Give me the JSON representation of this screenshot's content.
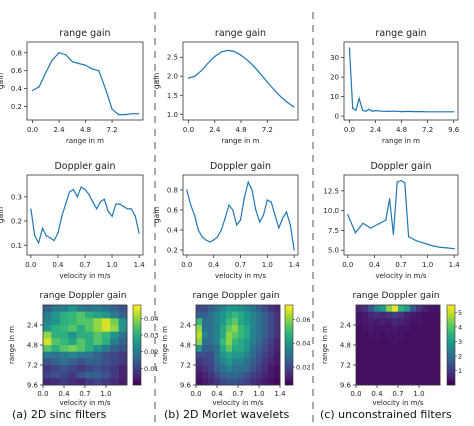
{
  "captions": [
    "(a) 2D sinc filters",
    "(b) 2D Morlet wavelets",
    "(c) unconstrained filters"
  ],
  "colors": {
    "line": "#1f77b4",
    "divider": "#555555",
    "colormap": "viridis"
  },
  "chart_data": [
    {
      "id": "a-range",
      "type": "line",
      "title": "range gain",
      "xlabel": "range in m",
      "ylabel": "gain",
      "xlim": [
        -0.5,
        10.0
      ],
      "ylim": [
        0.05,
        0.92
      ],
      "xticks": [
        0.0,
        2.4,
        4.8,
        7.2
      ],
      "xtick_labels": [
        "0.0",
        "2.4",
        "4.8",
        "7.2"
      ],
      "yticks": [
        0.2,
        0.4,
        0.6,
        0.8
      ],
      "ytick_labels": [
        "0.2",
        "0.4",
        "0.6",
        "0.8"
      ],
      "x": [
        0.0,
        0.6,
        1.2,
        1.8,
        2.4,
        3.0,
        3.6,
        4.2,
        4.8,
        5.4,
        6.0,
        6.6,
        7.2,
        7.8,
        8.4,
        9.0,
        9.6
      ],
      "values": [
        0.38,
        0.42,
        0.58,
        0.72,
        0.8,
        0.78,
        0.7,
        0.68,
        0.66,
        0.62,
        0.6,
        0.4,
        0.17,
        0.11,
        0.11,
        0.12,
        0.12
      ]
    },
    {
      "id": "b-range",
      "type": "line",
      "title": "range gain",
      "xlabel": "range in m",
      "ylabel": "gain",
      "xlim": [
        -0.5,
        10.0
      ],
      "ylim": [
        0.85,
        2.9
      ],
      "xticks": [
        0.0,
        2.4,
        4.8,
        7.2
      ],
      "xtick_labels": [
        "0.0",
        "2.4",
        "4.8",
        "7.2"
      ],
      "yticks": [
        1.0,
        1.5,
        2.0,
        2.5
      ],
      "ytick_labels": [
        "1.0",
        "1.5",
        "2.0",
        "2.5"
      ],
      "x": [
        0.0,
        0.6,
        1.2,
        1.8,
        2.4,
        3.0,
        3.6,
        4.2,
        4.8,
        5.4,
        6.0,
        6.6,
        7.2,
        7.8,
        8.4,
        9.0,
        9.6
      ],
      "values": [
        1.95,
        2.0,
        2.15,
        2.35,
        2.52,
        2.64,
        2.68,
        2.65,
        2.55,
        2.42,
        2.25,
        2.05,
        1.85,
        1.65,
        1.47,
        1.32,
        1.2
      ]
    },
    {
      "id": "c-range",
      "type": "line",
      "title": "range gain",
      "xlabel": "range in m",
      "ylabel": "",
      "xlim": [
        -0.5,
        10.0
      ],
      "ylim": [
        -2,
        38
      ],
      "xticks": [
        0.0,
        2.4,
        4.8,
        7.2,
        9.6
      ],
      "xtick_labels": [
        "0.0",
        "2.4",
        "4.8",
        "7.2",
        "9.6"
      ],
      "yticks": [
        0,
        10,
        20,
        30
      ],
      "ytick_labels": [
        "0",
        "10",
        "20",
        "30"
      ],
      "x": [
        0.0,
        0.3,
        0.6,
        0.9,
        1.2,
        1.5,
        1.8,
        2.1,
        2.4,
        3.0,
        3.6,
        4.2,
        4.8,
        5.4,
        6.0,
        6.6,
        7.2,
        7.8,
        8.4,
        9.0,
        9.6
      ],
      "values": [
        35,
        4,
        3,
        9,
        3,
        2.5,
        3.5,
        2.5,
        2.8,
        2.5,
        2.4,
        2.5,
        2.3,
        2.4,
        2.3,
        2.3,
        2.2,
        2.2,
        2.2,
        2.2,
        2.2
      ]
    },
    {
      "id": "a-doppler",
      "type": "line",
      "title": "Doppler gain",
      "xlabel": "velocity in m/s",
      "ylabel": "gain",
      "xlim": [
        -0.05,
        1.45
      ],
      "ylim": [
        0.06,
        0.39
      ],
      "xticks": [
        0.0,
        0.35,
        0.7,
        1.05,
        1.4
      ],
      "xtick_labels": [
        "0.0",
        "0.4",
        "0.7",
        "1.0",
        "1.4"
      ],
      "yticks": [
        0.1,
        0.2,
        0.3
      ],
      "ytick_labels": [
        "0.1",
        "0.2",
        "0.3"
      ],
      "x": [
        0.0,
        0.05,
        0.1,
        0.15,
        0.2,
        0.25,
        0.3,
        0.35,
        0.4,
        0.45,
        0.5,
        0.55,
        0.6,
        0.65,
        0.7,
        0.75,
        0.8,
        0.85,
        0.9,
        0.95,
        1.0,
        1.05,
        1.1,
        1.15,
        1.2,
        1.25,
        1.3,
        1.35,
        1.4
      ],
      "values": [
        0.25,
        0.14,
        0.11,
        0.17,
        0.14,
        0.13,
        0.12,
        0.15,
        0.22,
        0.27,
        0.32,
        0.33,
        0.3,
        0.34,
        0.33,
        0.31,
        0.28,
        0.25,
        0.28,
        0.29,
        0.24,
        0.22,
        0.27,
        0.27,
        0.26,
        0.25,
        0.25,
        0.22,
        0.15
      ]
    },
    {
      "id": "b-doppler",
      "type": "line",
      "title": "Doppler gain",
      "xlabel": "velocity in m/s",
      "ylabel": "gain",
      "xlim": [
        -0.05,
        1.45
      ],
      "ylim": [
        0.15,
        0.95
      ],
      "xticks": [
        0.0,
        0.35,
        0.7,
        1.05,
        1.4
      ],
      "xtick_labels": [
        "0.0",
        "0.4",
        "0.7",
        "1.0",
        "1.4"
      ],
      "yticks": [
        0.2,
        0.4,
        0.6,
        0.8
      ],
      "ytick_labels": [
        "0.2",
        "0.4",
        "0.6",
        "0.8"
      ],
      "x": [
        0.0,
        0.05,
        0.1,
        0.15,
        0.2,
        0.25,
        0.3,
        0.35,
        0.4,
        0.45,
        0.5,
        0.55,
        0.6,
        0.65,
        0.7,
        0.75,
        0.8,
        0.85,
        0.9,
        0.95,
        1.0,
        1.05,
        1.1,
        1.15,
        1.2,
        1.25,
        1.3,
        1.35,
        1.4
      ],
      "values": [
        0.8,
        0.65,
        0.55,
        0.4,
        0.33,
        0.3,
        0.28,
        0.3,
        0.33,
        0.4,
        0.52,
        0.65,
        0.6,
        0.45,
        0.5,
        0.72,
        0.88,
        0.8,
        0.6,
        0.48,
        0.55,
        0.7,
        0.68,
        0.55,
        0.42,
        0.52,
        0.58,
        0.45,
        0.2
      ]
    },
    {
      "id": "c-doppler",
      "type": "line",
      "title": "Doppler gain",
      "xlabel": "velocity in m/s",
      "ylabel": "",
      "xlim": [
        -0.05,
        1.45
      ],
      "ylim": [
        4.4,
        14.5
      ],
      "xticks": [
        0.0,
        0.35,
        0.7,
        1.05,
        1.4
      ],
      "xtick_labels": [
        "0.0",
        "0.4",
        "0.7",
        "1.0",
        "1.4"
      ],
      "yticks": [
        5.0,
        7.5,
        10.0,
        12.5
      ],
      "ytick_labels": [
        "5.0",
        "7.5",
        "10.0",
        "12.5"
      ],
      "x": [
        0.0,
        0.1,
        0.2,
        0.3,
        0.4,
        0.5,
        0.55,
        0.6,
        0.65,
        0.7,
        0.75,
        0.8,
        0.9,
        1.0,
        1.1,
        1.2,
        1.3,
        1.4
      ],
      "values": [
        9.5,
        7.2,
        8.4,
        7.8,
        8.3,
        8.8,
        11.5,
        7.0,
        13.6,
        13.8,
        13.5,
        6.7,
        6.2,
        5.9,
        5.6,
        5.4,
        5.3,
        5.2
      ]
    },
    {
      "id": "a-heatmap",
      "type": "heatmap",
      "title": "range Doppler gain",
      "xlabel": "velocity in m/s",
      "ylabel": "range in m",
      "extent": [
        0.0,
        1.4,
        0.0,
        9.6
      ],
      "xticks": [
        0.0,
        0.35,
        0.7,
        1.05
      ],
      "xtick_labels": [
        "0.0",
        "0.4",
        "0.7",
        "1.0"
      ],
      "yticks": [
        2.4,
        4.8,
        7.2,
        9.6
      ],
      "ytick_labels": [
        "2.4",
        "4.8",
        "7.2",
        "9.6"
      ],
      "colorbar": {
        "min": 0.0,
        "max": 0.048,
        "ticks": [
          0.01,
          0.02,
          0.03,
          0.04
        ],
        "tick_labels": [
          "0.01",
          "0.02",
          "0.03",
          "0.04"
        ]
      },
      "rows": 12,
      "cols": 10,
      "values": [
        [
          0.015,
          0.02,
          0.02,
          0.025,
          0.02,
          0.018,
          0.02,
          0.018,
          0.015,
          0.012
        ],
        [
          0.02,
          0.025,
          0.03,
          0.032,
          0.035,
          0.03,
          0.028,
          0.025,
          0.02,
          0.015
        ],
        [
          0.022,
          0.025,
          0.03,
          0.032,
          0.035,
          0.035,
          0.04,
          0.045,
          0.038,
          0.025
        ],
        [
          0.025,
          0.03,
          0.032,
          0.035,
          0.03,
          0.035,
          0.04,
          0.045,
          0.04,
          0.025
        ],
        [
          0.04,
          0.03,
          0.03,
          0.025,
          0.03,
          0.03,
          0.035,
          0.032,
          0.025,
          0.018
        ],
        [
          0.045,
          0.035,
          0.032,
          0.028,
          0.035,
          0.03,
          0.035,
          0.03,
          0.02,
          0.015
        ],
        [
          0.035,
          0.03,
          0.035,
          0.038,
          0.035,
          0.03,
          0.025,
          0.02,
          0.015,
          0.012
        ],
        [
          0.02,
          0.018,
          0.02,
          0.022,
          0.02,
          0.018,
          0.015,
          0.012,
          0.01,
          0.008
        ],
        [
          0.012,
          0.015,
          0.018,
          0.015,
          0.012,
          0.015,
          0.015,
          0.012,
          0.01,
          0.008
        ],
        [
          0.008,
          0.01,
          0.012,
          0.01,
          0.008,
          0.01,
          0.012,
          0.01,
          0.008,
          0.005
        ],
        [
          0.01,
          0.012,
          0.01,
          0.008,
          0.012,
          0.015,
          0.015,
          0.012,
          0.008,
          0.005
        ],
        [
          0.005,
          0.006,
          0.008,
          0.006,
          0.005,
          0.008,
          0.01,
          0.008,
          0.006,
          0.004
        ]
      ]
    },
    {
      "id": "b-heatmap",
      "type": "heatmap",
      "title": "range Doppler gain",
      "xlabel": "velocity in m/s",
      "ylabel": "range in m",
      "extent": [
        0.0,
        1.4,
        0.0,
        9.6
      ],
      "xticks": [
        0.0,
        0.35,
        0.7,
        1.05,
        1.4
      ],
      "xtick_labels": [
        "0.0",
        "0.4",
        "0.7",
        "1.0",
        "1.4"
      ],
      "yticks": [
        2.4,
        4.8,
        7.2,
        9.6
      ],
      "ytick_labels": [
        "2.4",
        "4.8",
        "7.2",
        "9.6"
      ],
      "colorbar": {
        "min": 0.005,
        "max": 0.072,
        "ticks": [
          0.02,
          0.04,
          0.06
        ],
        "tick_labels": [
          "0.02",
          "0.04",
          "0.06"
        ]
      },
      "rows": 12,
      "cols": 14,
      "values": [
        [
          0.02,
          0.02,
          0.025,
          0.03,
          0.035,
          0.04,
          0.04,
          0.038,
          0.035,
          0.03,
          0.025,
          0.02,
          0.015,
          0.012
        ],
        [
          0.025,
          0.025,
          0.03,
          0.035,
          0.04,
          0.045,
          0.05,
          0.045,
          0.04,
          0.035,
          0.03,
          0.025,
          0.02,
          0.015
        ],
        [
          0.05,
          0.03,
          0.03,
          0.035,
          0.04,
          0.05,
          0.055,
          0.045,
          0.04,
          0.035,
          0.03,
          0.025,
          0.02,
          0.015
        ],
        [
          0.06,
          0.03,
          0.03,
          0.035,
          0.045,
          0.055,
          0.06,
          0.05,
          0.045,
          0.035,
          0.03,
          0.025,
          0.02,
          0.015
        ],
        [
          0.065,
          0.035,
          0.03,
          0.035,
          0.045,
          0.06,
          0.055,
          0.05,
          0.045,
          0.035,
          0.03,
          0.025,
          0.02,
          0.015
        ],
        [
          0.06,
          0.03,
          0.03,
          0.035,
          0.05,
          0.06,
          0.05,
          0.045,
          0.04,
          0.035,
          0.028,
          0.022,
          0.018,
          0.012
        ],
        [
          0.04,
          0.025,
          0.025,
          0.03,
          0.045,
          0.055,
          0.045,
          0.045,
          0.04,
          0.03,
          0.025,
          0.02,
          0.015,
          0.012
        ],
        [
          0.02,
          0.02,
          0.02,
          0.03,
          0.04,
          0.045,
          0.04,
          0.04,
          0.035,
          0.028,
          0.022,
          0.018,
          0.014,
          0.01
        ],
        [
          0.015,
          0.018,
          0.02,
          0.028,
          0.035,
          0.04,
          0.035,
          0.035,
          0.03,
          0.025,
          0.02,
          0.015,
          0.012,
          0.01
        ],
        [
          0.012,
          0.015,
          0.018,
          0.025,
          0.03,
          0.035,
          0.03,
          0.03,
          0.028,
          0.022,
          0.018,
          0.014,
          0.01,
          0.008
        ],
        [
          0.01,
          0.012,
          0.015,
          0.02,
          0.025,
          0.028,
          0.028,
          0.025,
          0.022,
          0.018,
          0.015,
          0.012,
          0.01,
          0.008
        ],
        [
          0.008,
          0.01,
          0.012,
          0.015,
          0.02,
          0.022,
          0.022,
          0.02,
          0.018,
          0.015,
          0.012,
          0.01,
          0.008,
          0.006
        ]
      ]
    },
    {
      "id": "c-heatmap",
      "type": "heatmap",
      "title": "range Doppler gain",
      "xlabel": "velocity in m/s",
      "ylabel": "range in m",
      "extent": [
        0.0,
        1.4,
        0.0,
        9.6
      ],
      "xticks": [
        0.0,
        0.35,
        0.7,
        1.05
      ],
      "xtick_labels": [
        "0.0",
        "0.4",
        "0.7",
        "1.0"
      ],
      "yticks": [
        2.4,
        4.8,
        7.2,
        9.6
      ],
      "ytick_labels": [
        "2.4",
        "4.8",
        "7.2",
        "9.6"
      ],
      "colorbar": {
        "min": 0.0,
        "max": 5.5,
        "ticks": [
          1,
          2,
          3,
          4,
          5
        ],
        "tick_labels": [
          "1",
          "2",
          "3",
          "4",
          "5"
        ]
      },
      "rows": 12,
      "cols": 14,
      "values": [
        [
          0.6,
          0.8,
          1.5,
          2.5,
          3.0,
          4.5,
          5.3,
          3.5,
          3.0,
          1.5,
          0.8,
          0.5,
          0.3,
          0.3
        ],
        [
          0.3,
          0.4,
          0.6,
          0.8,
          0.6,
          0.8,
          1.0,
          0.8,
          0.5,
          0.4,
          0.3,
          0.2,
          0.2,
          0.2
        ],
        [
          0.3,
          0.4,
          0.5,
          0.4,
          0.5,
          0.4,
          0.6,
          0.5,
          0.4,
          0.3,
          0.3,
          0.2,
          0.2,
          0.2
        ],
        [
          0.2,
          0.3,
          0.4,
          0.3,
          0.3,
          0.3,
          0.4,
          0.3,
          0.3,
          0.2,
          0.2,
          0.2,
          0.2,
          0.2
        ],
        [
          0.2,
          0.2,
          0.3,
          0.3,
          0.2,
          0.3,
          0.3,
          0.3,
          0.2,
          0.2,
          0.2,
          0.2,
          0.2,
          0.2
        ],
        [
          0.2,
          0.2,
          0.2,
          0.2,
          0.2,
          0.2,
          0.3,
          0.2,
          0.2,
          0.2,
          0.2,
          0.2,
          0.2,
          0.2
        ],
        [
          0.2,
          0.2,
          0.2,
          0.2,
          0.2,
          0.2,
          0.2,
          0.2,
          0.2,
          0.2,
          0.2,
          0.2,
          0.2,
          0.2
        ],
        [
          0.2,
          0.2,
          0.2,
          0.2,
          0.2,
          0.2,
          0.2,
          0.2,
          0.2,
          0.2,
          0.2,
          0.2,
          0.2,
          0.2
        ],
        [
          0.2,
          0.2,
          0.2,
          0.2,
          0.2,
          0.2,
          0.2,
          0.2,
          0.2,
          0.2,
          0.2,
          0.2,
          0.2,
          0.2
        ],
        [
          0.2,
          0.2,
          0.2,
          0.2,
          0.2,
          0.2,
          0.2,
          0.2,
          0.2,
          0.2,
          0.2,
          0.2,
          0.2,
          0.2
        ],
        [
          0.2,
          0.2,
          0.2,
          0.2,
          0.2,
          0.2,
          0.2,
          0.2,
          0.2,
          0.2,
          0.2,
          0.2,
          0.2,
          0.2
        ],
        [
          0.2,
          0.2,
          0.2,
          0.2,
          0.2,
          0.2,
          0.2,
          0.2,
          0.2,
          0.2,
          0.2,
          0.2,
          0.2,
          0.2
        ]
      ]
    }
  ]
}
